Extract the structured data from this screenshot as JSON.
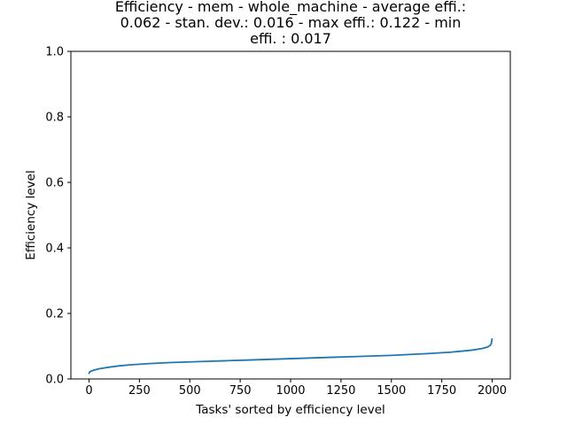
{
  "chart_data": {
    "type": "line",
    "title_lines": [
      "Efficiency - mem - whole_machine - average effi.:",
      "0.062 - stan. dev.: 0.016 - max effi.: 0.122 - min",
      "effi. : 0.017"
    ],
    "xlabel": "Tasks' sorted by efficiency level",
    "ylabel": "Efficiency level",
    "xlim": [
      -90,
      2090
    ],
    "ylim": [
      0,
      1
    ],
    "xticks": [
      0,
      250,
      500,
      750,
      1000,
      1250,
      1500,
      1750,
      2000
    ],
    "yticks": [
      0.0,
      0.2,
      0.4,
      0.6,
      0.8,
      1.0
    ],
    "ytick_labels": [
      "0.0",
      "0.2",
      "0.4",
      "0.6",
      "0.8",
      "1.0"
    ],
    "grid": false,
    "series": [
      {
        "color": "#1f77b4",
        "x": [
          0,
          3,
          10,
          25,
          50,
          100,
          150,
          200,
          300,
          400,
          500,
          600,
          700,
          800,
          900,
          1000,
          1100,
          1200,
          1300,
          1400,
          1500,
          1600,
          1700,
          1750,
          1800,
          1850,
          1900,
          1950,
          1975,
          1990,
          1996,
          1999
        ],
        "y": [
          0.017,
          0.021,
          0.024,
          0.027,
          0.031,
          0.036,
          0.04,
          0.043,
          0.047,
          0.05,
          0.052,
          0.054,
          0.056,
          0.058,
          0.06,
          0.062,
          0.064,
          0.066,
          0.068,
          0.07,
          0.072,
          0.075,
          0.078,
          0.08,
          0.082,
          0.085,
          0.088,
          0.093,
          0.097,
          0.102,
          0.108,
          0.122
        ]
      }
    ]
  }
}
